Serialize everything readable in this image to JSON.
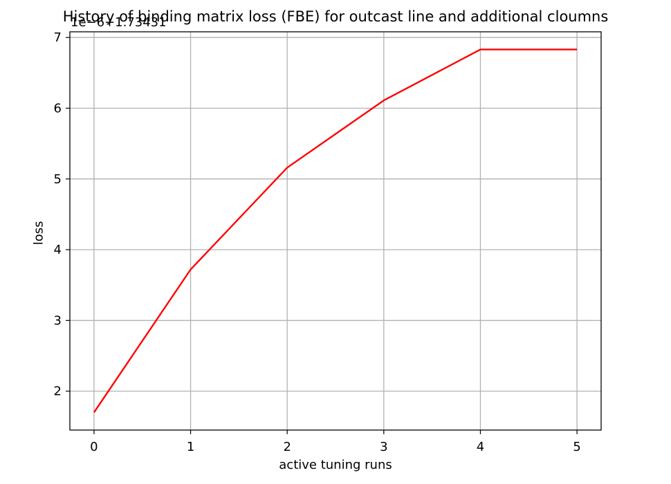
{
  "chart_data": {
    "type": "line",
    "title": "History of binding matrix loss (FBE) for outcast line and additional cloumns",
    "offset_label": "1e−6+1.73431",
    "xlabel": "active tuning runs",
    "ylabel": "loss",
    "x": [
      0,
      1,
      2,
      3,
      4,
      5
    ],
    "series": [
      {
        "values": [
          1.7,
          3.72,
          5.16,
          6.11,
          6.83,
          6.83
        ],
        "color": "#ff0000"
      }
    ],
    "xticks": [
      "0",
      "1",
      "2",
      "3",
      "4",
      "5"
    ],
    "yticks": [
      "2",
      "3",
      "4",
      "5",
      "6",
      "7"
    ],
    "xlim": [
      -0.25,
      5.25
    ],
    "ylim": [
      1.45,
      7.08
    ],
    "grid": true,
    "colors": {
      "line": "#ff0000",
      "grid": "#b0b0b0",
      "axes": "#000000"
    }
  }
}
